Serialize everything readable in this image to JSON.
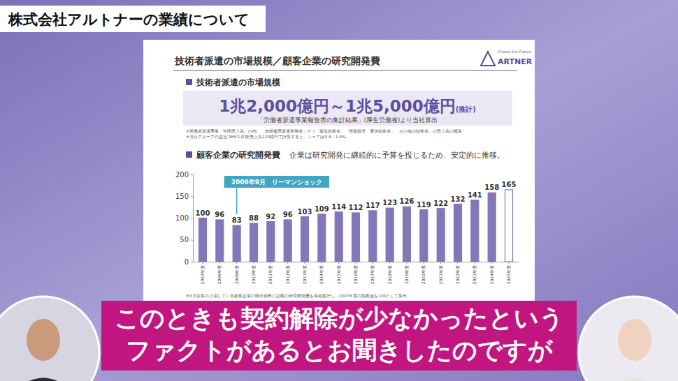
{
  "page": {
    "banner": "株式会社アルトナーの業績について",
    "slide_title": "技術者派遣の市場規模／顧客企業の研究開発費",
    "logo_tagline": "Create the Future",
    "logo": "ARTNER",
    "section1": {
      "heading": "技術者派遣の市場規模",
      "value": "1兆2,000億円～1兆5,000億円",
      "value_note": "(推計)",
      "source": "「労働者派遣事業報告書の集計結果」(厚生労働省)より当社算出",
      "notes": [
        "※労働者派遣事業「年間売上高」の内、「無期雇用派遣労働者」かつ「製造技術者」「情報処理・通信技術者」「その他の技術者」の売上高の概算",
        "※当社グループの直近'26年1月期 売上高120億円で計算すると、シェアは0.8～1.0%。"
      ]
    },
    "section2": {
      "heading": "顧客企業の研究開発費",
      "lead": "企業は研究開発に継続的に予算を投じるため、安定的に推移。",
      "footnote": "※3月決算の上場している顧客企業の開示資料に記載の研究開発費を単純集計し、2007年度の指数値を100として算出。"
    },
    "caption": [
      "このときも契約解除が少なかったという",
      "ファクトがあるとお聞きしたのですが"
    ]
  },
  "chart_data": {
    "type": "bar",
    "categories": [
      "2007年度",
      "2008年度",
      "2009年度",
      "2010年度",
      "2011年度",
      "2012年度",
      "2013年度",
      "2014年度",
      "2015年度",
      "2016年度",
      "2017年度",
      "2018年度",
      "2019年度",
      "2020年度",
      "2021年度",
      "2022年度",
      "2023年度",
      "2024年度",
      "2025年度"
    ],
    "values": [
      100,
      96,
      83,
      88,
      92,
      96,
      103,
      109,
      114,
      112,
      117,
      123,
      126,
      119,
      122,
      132,
      141,
      158,
      165
    ],
    "color": "#8377b9",
    "colors": [
      "#8377b9",
      "#8377b9",
      "#8377b9",
      "#8377b9",
      "#8377b9",
      "#8377b9",
      "#8377b9",
      "#8377b9",
      "#8377b9",
      "#8377b9",
      "#8377b9",
      "#8377b9",
      "#8377b9",
      "#8377b9",
      "#8377b9",
      "#8377b9",
      "#8377b9",
      "#8377b9",
      "#ffffff"
    ],
    "ylim": [
      0,
      200
    ],
    "yticks": [
      0,
      50,
      100,
      150,
      200
    ],
    "grid": false,
    "data_labels": true,
    "annotations": [
      {
        "text": "2008年9月　リーマンショック",
        "x": "2009年度"
      }
    ]
  }
}
